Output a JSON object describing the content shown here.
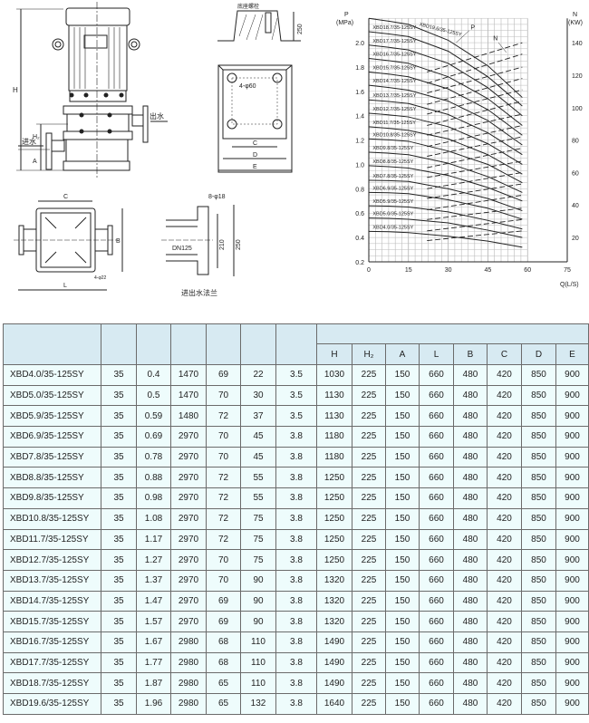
{
  "drawings": {
    "pump_elevation": {
      "H": "H",
      "H2": "H₂",
      "A": "A",
      "inlet": "进水",
      "outlet": "出水"
    },
    "foundation": {
      "bolt_label": "底座螺栓",
      "depth": "250",
      "holes": "4-φ60",
      "C": "C",
      "D": "D",
      "E": "E"
    },
    "base_plan": {
      "C": "C",
      "B": "B",
      "L": "L",
      "holes": "4-φ22"
    },
    "flange": {
      "holes": "8-φ18",
      "pipe": "DN125",
      "dim_inner": "210",
      "dim_outer": "250",
      "caption": "进出水法兰"
    }
  },
  "chart_data": {
    "type": "line",
    "title": "",
    "xlabel": "Q(L/S)",
    "ylabel_left": "P\n(MPa)",
    "ylabel_right": "N\n(KW)",
    "xlim": [
      0,
      75
    ],
    "ylim_left": [
      0.2,
      2.2
    ],
    "ylim_right": [
      0,
      145
    ],
    "x_ticks": [
      "0",
      "15",
      "30",
      "45",
      "60",
      "75"
    ],
    "y_ticks_left": [
      "0.2",
      "0.4",
      "0.6",
      "0.8",
      "1.0",
      "1.2",
      "1.4",
      "1.6",
      "1.8",
      "2.0"
    ],
    "y_ticks_right": [
      "20",
      "40",
      "60",
      "80",
      "100",
      "120",
      "140"
    ],
    "grid": true,
    "curve_labels": {
      "P": "P",
      "N": "N"
    },
    "pressure_q": [
      0,
      15,
      30,
      45,
      58
    ],
    "power_q": [
      22,
      58
    ],
    "series": [
      {
        "name": "XBD4.0/35-125SY",
        "P": [
          0.45,
          0.44,
          0.41,
          0.37,
          0.32
        ],
        "N": [
          18,
          24
        ]
      },
      {
        "name": "XBD5.0/35-125SY",
        "P": [
          0.56,
          0.55,
          0.52,
          0.46,
          0.4
        ],
        "N": [
          24,
          31
        ]
      },
      {
        "name": "XBD5.9/35-125SY",
        "P": [
          0.66,
          0.65,
          0.61,
          0.54,
          0.47
        ],
        "N": [
          31,
          38
        ]
      },
      {
        "name": "XBD6.9/35-125SY",
        "P": [
          0.77,
          0.76,
          0.71,
          0.64,
          0.55
        ],
        "N": [
          37,
          46
        ]
      },
      {
        "name": "XBD7.8/35-125SY",
        "P": [
          0.87,
          0.86,
          0.8,
          0.72,
          0.62
        ],
        "N": [
          44,
          53
        ]
      },
      {
        "name": "XBD8.8/35-125SY",
        "P": [
          0.99,
          0.97,
          0.91,
          0.81,
          0.7
        ],
        "N": [
          50,
          60
        ]
      },
      {
        "name": "XBD9.8/35-125SY",
        "P": [
          1.1,
          1.08,
          1.01,
          0.9,
          0.77
        ],
        "N": [
          57,
          67
        ]
      },
      {
        "name": "XBD10.8/35-125SY",
        "P": [
          1.21,
          1.19,
          1.11,
          1.0,
          0.85
        ],
        "N": [
          63,
          75
        ]
      },
      {
        "name": "XBD11.7/35-125SY",
        "P": [
          1.31,
          1.28,
          1.21,
          1.08,
          0.92
        ],
        "N": [
          70,
          82
        ]
      },
      {
        "name": "XBD12.7/35-125SY",
        "P": [
          1.42,
          1.39,
          1.31,
          1.17,
          1.0
        ],
        "N": [
          76,
          89
        ]
      },
      {
        "name": "XBD13.7/35-125SY",
        "P": [
          1.53,
          1.5,
          1.41,
          1.26,
          1.08
        ],
        "N": [
          83,
          96
        ]
      },
      {
        "name": "XBD14.7/35-125SY",
        "P": [
          1.65,
          1.61,
          1.52,
          1.36,
          1.16
        ],
        "N": [
          89,
          104
        ]
      },
      {
        "name": "XBD15.7/35-125SY",
        "P": [
          1.76,
          1.72,
          1.62,
          1.45,
          1.24
        ],
        "N": [
          96,
          111
        ]
      },
      {
        "name": "XBD16.7/35-125SY",
        "P": [
          1.87,
          1.83,
          1.72,
          1.54,
          1.32
        ],
        "N": [
          102,
          118
        ]
      },
      {
        "name": "XBD17.7/35-125SY",
        "P": [
          1.98,
          1.94,
          1.83,
          1.63,
          1.4
        ],
        "N": [
          109,
          125
        ]
      },
      {
        "name": "XBD18.7/35-125SY",
        "P": [
          2.09,
          2.05,
          1.93,
          1.72,
          1.48
        ],
        "N": [
          115,
          133
        ]
      },
      {
        "name": "XBD19.6/35-125SY",
        "P": [
          2.2,
          2.15,
          2.02,
          1.81,
          1.55
        ],
        "N": [
          122,
          140
        ]
      }
    ]
  },
  "table": {
    "header_blank": [
      "",
      "",
      "",
      "",
      "",
      "",
      "",
      ""
    ],
    "dim_headers": [
      "H",
      "H₂",
      "A",
      "L",
      "B",
      "C",
      "D",
      "E"
    ],
    "rows": [
      [
        "XBD4.0/35-125SY",
        "35",
        "0.4",
        "1470",
        "69",
        "22",
        "3.5",
        "1030",
        "225",
        "150",
        "660",
        "480",
        "420",
        "850",
        "900"
      ],
      [
        "XBD5.0/35-125SY",
        "35",
        "0.5",
        "1470",
        "70",
        "30",
        "3.5",
        "1130",
        "225",
        "150",
        "660",
        "480",
        "420",
        "850",
        "900"
      ],
      [
        "XBD5.9/35-125SY",
        "35",
        "0.59",
        "1480",
        "72",
        "37",
        "3.5",
        "1130",
        "225",
        "150",
        "660",
        "480",
        "420",
        "850",
        "900"
      ],
      [
        "XBD6.9/35-125SY",
        "35",
        "0.69",
        "2970",
        "70",
        "45",
        "3.8",
        "1180",
        "225",
        "150",
        "660",
        "480",
        "420",
        "850",
        "900"
      ],
      [
        "XBD7.8/35-125SY",
        "35",
        "0.78",
        "2970",
        "70",
        "45",
        "3.8",
        "1180",
        "225",
        "150",
        "660",
        "480",
        "420",
        "850",
        "900"
      ],
      [
        "XBD8.8/35-125SY",
        "35",
        "0.88",
        "2970",
        "72",
        "55",
        "3.8",
        "1250",
        "225",
        "150",
        "660",
        "480",
        "420",
        "850",
        "900"
      ],
      [
        "XBD9.8/35-125SY",
        "35",
        "0.98",
        "2970",
        "72",
        "55",
        "3.8",
        "1250",
        "225",
        "150",
        "660",
        "480",
        "420",
        "850",
        "900"
      ],
      [
        "XBD10.8/35-125SY",
        "35",
        "1.08",
        "2970",
        "72",
        "75",
        "3.8",
        "1250",
        "225",
        "150",
        "660",
        "480",
        "420",
        "850",
        "900"
      ],
      [
        "XBD11.7/35-125SY",
        "35",
        "1.17",
        "2970",
        "72",
        "75",
        "3.8",
        "1250",
        "225",
        "150",
        "660",
        "480",
        "420",
        "850",
        "900"
      ],
      [
        "XBD12.7/35-125SY",
        "35",
        "1.27",
        "2970",
        "70",
        "75",
        "3.8",
        "1250",
        "225",
        "150",
        "660",
        "480",
        "420",
        "850",
        "900"
      ],
      [
        "XBD13.7/35-125SY",
        "35",
        "1.37",
        "2970",
        "70",
        "90",
        "3.8",
        "1320",
        "225",
        "150",
        "660",
        "480",
        "420",
        "850",
        "900"
      ],
      [
        "XBD14.7/35-125SY",
        "35",
        "1.47",
        "2970",
        "69",
        "90",
        "3.8",
        "1320",
        "225",
        "150",
        "660",
        "480",
        "420",
        "850",
        "900"
      ],
      [
        "XBD15.7/35-125SY",
        "35",
        "1.57",
        "2970",
        "69",
        "90",
        "3.8",
        "1320",
        "225",
        "150",
        "660",
        "480",
        "420",
        "850",
        "900"
      ],
      [
        "XBD16.7/35-125SY",
        "35",
        "1.67",
        "2980",
        "68",
        "110",
        "3.8",
        "1490",
        "225",
        "150",
        "660",
        "480",
        "420",
        "850",
        "900"
      ],
      [
        "XBD17.7/35-125SY",
        "35",
        "1.77",
        "2980",
        "68",
        "110",
        "3.8",
        "1490",
        "225",
        "150",
        "660",
        "480",
        "420",
        "850",
        "900"
      ],
      [
        "XBD18.7/35-125SY",
        "35",
        "1.87",
        "2980",
        "65",
        "110",
        "3.8",
        "1490",
        "225",
        "150",
        "660",
        "480",
        "420",
        "850",
        "900"
      ],
      [
        "XBD19.6/35-125SY",
        "35",
        "1.96",
        "2980",
        "65",
        "132",
        "3.8",
        "1640",
        "225",
        "150",
        "660",
        "480",
        "420",
        "850",
        "900"
      ]
    ]
  },
  "colors": {
    "header_bg": "#d7eaf2",
    "cell_bg": "#eefcfc",
    "border": "#6b6b6b",
    "line": "#222222"
  }
}
